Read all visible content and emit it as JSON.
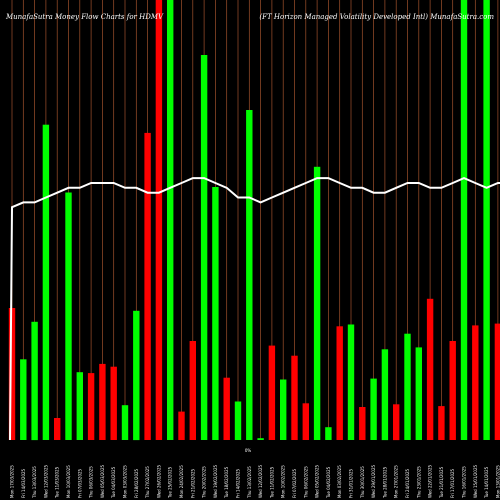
{
  "header": {
    "left": "MunafaSutra  Money Flow  Charts for HDMV",
    "right": "(FT Horizon  Managed Volatility Developed Intl) MunafaSutra.com"
  },
  "colors": {
    "background": "#000000",
    "up": "#00ff00",
    "down": "#ff0000",
    "grid": "#a0522d",
    "line": "#ffffff"
  },
  "chart_data": {
    "type": "bar",
    "title": "",
    "xlabel": "",
    "ylabel": "",
    "grid": "vertical lines on",
    "mid_label": "0%",
    "categories": [
      "Mon 17/03/2025",
      "Fri 14/03/2025",
      "Thu 13/03/2025",
      "Wed 12/03/2025",
      "Tue 11/03/2025",
      "Mon 10/03/2025",
      "Fri 07/03/2025",
      "Thu 06/03/2025",
      "Wed 05/03/2025",
      "Tue 04/03/2025",
      "Mon 03/03/2025",
      "Fri 28/02/2025",
      "Thu 27/02/2025",
      "Wed 26/02/2025",
      "Tue 25/02/2025",
      "Mon 24/02/2025",
      "Fri 21/02/2025",
      "Thu 20/02/2025",
      "Wed 19/02/2025",
      "Tue 18/02/2025",
      "Fri 14/02/2025",
      "Thu 13/02/2025",
      "Wed 12/02/2025",
      "Tue 11/02/2025",
      "Mon 10/02/2025",
      "Fri 07/02/2025",
      "Thu 06/02/2025",
      "Wed 05/02/2025",
      "Tue 04/02/2025",
      "Mon 03/02/2025",
      "Fri 31/01/2025",
      "Thu 30/01/2025",
      "Wed 29/01/2025",
      "Tue 28/01/2025",
      "Mon 27/01/2025",
      "Fri 24/01/2025",
      "Thu 23/01/2025",
      "Wed 22/01/2025",
      "Tue 21/01/2025",
      "Fri 17/01/2025",
      "Thu 16/01/2025",
      "Wed 15/01/2025",
      "Tue 14/01/2025",
      "Mon 13/01/2025",
      "Fri 10/01/2025"
    ],
    "series": [
      {
        "values": [
          144,
          88,
          129,
          344,
          24,
          270,
          74,
          73,
          83,
          80,
          38,
          141,
          335,
          480,
          480,
          31,
          108,
          420,
          276,
          68,
          42,
          360,
          2,
          103,
          66,
          92,
          40,
          298,
          14,
          124,
          126,
          36,
          67,
          99,
          39,
          116,
          101,
          154,
          37,
          108,
          480,
          125,
          480,
          127,
          162
        ],
        "colors": [
          "down",
          "up",
          "up",
          "up",
          "down",
          "up",
          "up",
          "down",
          "down",
          "down",
          "up",
          "up",
          "down",
          "down",
          "up",
          "down",
          "down",
          "up",
          "up",
          "down",
          "up",
          "up",
          "up",
          "down",
          "up",
          "down",
          "down",
          "up",
          "up",
          "down",
          "up",
          "down",
          "up",
          "up",
          "down",
          "up",
          "up",
          "down",
          "down",
          "down",
          "up",
          "down",
          "up",
          "down",
          "up"
        ]
      },
      {
        "values": [
          48,
          49,
          49,
          50,
          51,
          52,
          52,
          53,
          53,
          53,
          52,
          52,
          51,
          51,
          52,
          53,
          54,
          54,
          53,
          52,
          50,
          50,
          49,
          50,
          51,
          52,
          53,
          54,
          54,
          53,
          52,
          52,
          51,
          51,
          52,
          53,
          53,
          52,
          52,
          53,
          54,
          53,
          52,
          53,
          53
        ]
      }
    ]
  }
}
